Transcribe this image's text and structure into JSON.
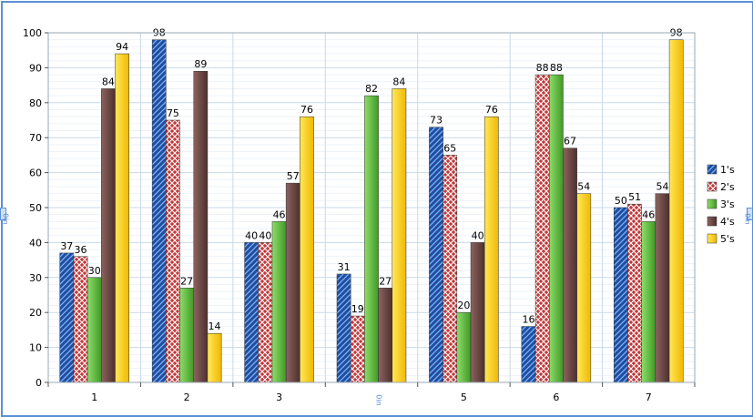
{
  "chart_data": {
    "type": "bar",
    "title": "",
    "xlabel": "",
    "ylabel": "",
    "ylim": [
      0,
      100
    ],
    "ytick_step": 10,
    "grid": true,
    "legend": "right",
    "categories": [
      "1",
      "2",
      "3",
      "",
      "5",
      "6",
      "7"
    ],
    "series": [
      {
        "name": "1's",
        "values": [
          37,
          98,
          40,
          31,
          73,
          16,
          50
        ],
        "color": "#1f4f9c",
        "pattern": "hatch"
      },
      {
        "name": "2's",
        "values": [
          36,
          75,
          40,
          19,
          65,
          88,
          51
        ],
        "color": "#c0393b",
        "pattern": "cross"
      },
      {
        "name": "3's",
        "values": [
          30,
          27,
          46,
          82,
          20,
          88,
          46
        ],
        "color": "#56b13a",
        "pattern": "gradient"
      },
      {
        "name": "4's",
        "values": [
          84,
          89,
          57,
          27,
          40,
          67,
          54
        ],
        "color": "#6a4643",
        "pattern": "gradient"
      },
      {
        "name": "5's",
        "values": [
          94,
          14,
          76,
          84,
          76,
          54,
          98
        ],
        "color": "#f5c800",
        "pattern": "gradient"
      }
    ]
  },
  "handles": {
    "left": "0in",
    "right": "0in",
    "bottom": "0in"
  }
}
